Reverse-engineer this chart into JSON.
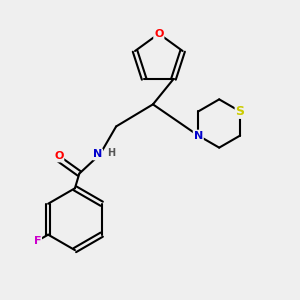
{
  "background_color": "#efefef",
  "bond_color": "#000000",
  "atom_colors": {
    "O": "#ff0000",
    "N": "#0000cc",
    "S": "#cccc00",
    "F": "#cc00cc",
    "H": "#555555",
    "C": "#000000"
  }
}
